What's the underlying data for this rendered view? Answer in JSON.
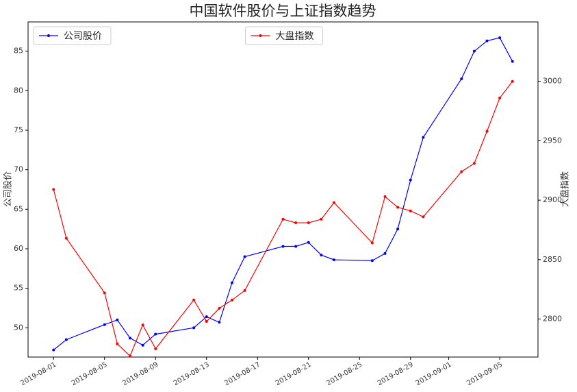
{
  "chart_data": {
    "type": "line",
    "title": "中国软件股价与上证指数趋势",
    "x": [
      "2019-08-01",
      "2019-08-02",
      "2019-08-05",
      "2019-08-06",
      "2019-08-07",
      "2019-08-08",
      "2019-08-09",
      "2019-08-12",
      "2019-08-13",
      "2019-08-14",
      "2019-08-15",
      "2019-08-16",
      "2019-08-19",
      "2019-08-20",
      "2019-08-21",
      "2019-08-22",
      "2019-08-23",
      "2019-08-26",
      "2019-08-27",
      "2019-08-28",
      "2019-08-29",
      "2019-08-30",
      "2019-09-02",
      "2019-09-03",
      "2019-09-04",
      "2019-09-05",
      "2019-09-06"
    ],
    "series": [
      {
        "name": "公司股价",
        "color": "#0000ff",
        "axis": "y",
        "legend": "upper left",
        "values": [
          47.2,
          48.5,
          50.4,
          51.0,
          48.7,
          47.8,
          49.2,
          50.0,
          51.4,
          50.7,
          55.7,
          59.0,
          60.3,
          60.3,
          60.8,
          59.2,
          58.6,
          58.5,
          59.4,
          62.5,
          68.7,
          74.1,
          81.5,
          85.0,
          86.3,
          86.7,
          83.7
        ]
      },
      {
        "name": "大盘指数",
        "color": "#ff0000",
        "axis": "y2",
        "legend": "upper center",
        "values": [
          2909,
          2868,
          2822,
          2779,
          2769,
          2795,
          2775,
          2816,
          2798,
          2809,
          2816,
          2824,
          2884,
          2881,
          2881,
          2884,
          2898,
          2864,
          2903,
          2894,
          2891,
          2886,
          2924,
          2931,
          2958,
          2986,
          3000
        ]
      }
    ],
    "ylabel": "公司股价",
    "y2label": "大盘指数",
    "xlim": [
      "2019-07-30",
      "2019-09-08"
    ],
    "xticks": [
      "2019-08-01",
      "2019-08-05",
      "2019-08-09",
      "2019-08-13",
      "2019-08-17",
      "2019-08-21",
      "2019-08-25",
      "2019-08-29",
      "2019-09-01",
      "2019-09-05"
    ],
    "ylim": [
      46.3,
      88.7
    ],
    "yticks": [
      50,
      55,
      60,
      65,
      70,
      75,
      80,
      85
    ],
    "y2lim": [
      2768,
      3050
    ],
    "y2ticks": [
      2800,
      2850,
      2900,
      2950,
      3000
    ]
  }
}
